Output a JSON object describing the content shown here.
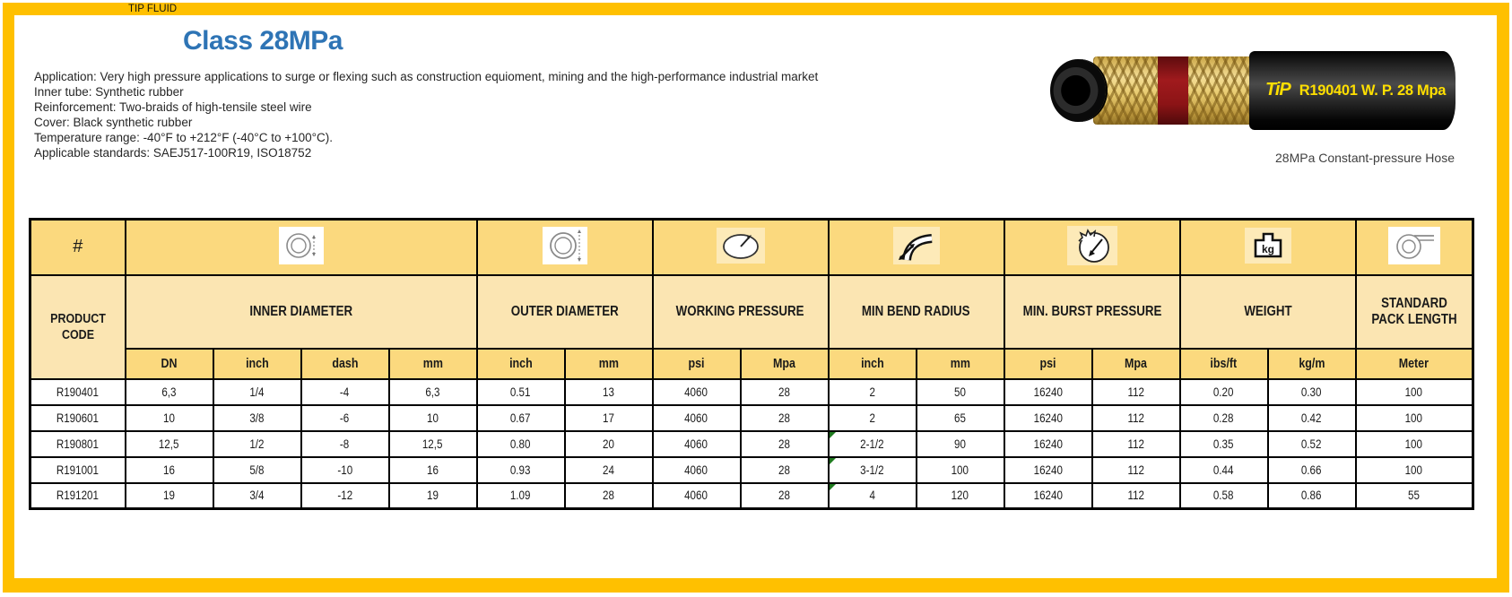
{
  "brand": {
    "top_label": "TIP FLUID"
  },
  "header": {
    "title": "Class 28MPa"
  },
  "description": {
    "lines": [
      "Application: Very high pressure applications to surge or flexing such as construction equioment, mining and the high-performance industrial market",
      "Inner tube: Synthetic rubber",
      "Reinforcement: Two-braids of high-tensile steel wire",
      "Cover: Black synthetic rubber",
      "Temperature range: -40°F to +212°F (-40°C to +100°C).",
      "Applicable standards: SAEJ517-100R19, ISO18752"
    ]
  },
  "hose": {
    "print_logo": "TiP",
    "print_text": "R190401 W. P. 28 Mpa",
    "caption": "28MPa Constant-pressure Hose"
  },
  "table": {
    "corner_symbol": "#",
    "product_code_label": "PRODUCT CODE",
    "groups": [
      {
        "label": "INNER DIAMETER",
        "icon": "inner-diameter-icon",
        "span": 4
      },
      {
        "label": "OUTER DIAMETER",
        "icon": "outer-diameter-icon",
        "span": 2
      },
      {
        "label": "WORKING PRESSURE",
        "icon": "working-pressure-icon",
        "span": 2
      },
      {
        "label": "MIN BEND RADIUS",
        "icon": "min-bend-radius-icon",
        "span": 2
      },
      {
        "label": "MIN. BURST PRESSURE",
        "icon": "min-burst-pressure-icon",
        "span": 2
      },
      {
        "label": "WEIGHT",
        "icon": "weight-icon",
        "span": 2
      },
      {
        "label": "STANDARD PACK LENGTH",
        "icon": "pack-length-icon",
        "span": 1
      }
    ],
    "units": [
      "DN",
      "inch",
      "dash",
      "mm",
      "inch",
      "mm",
      "psi",
      "Mpa",
      "inch",
      "mm",
      "psi",
      "Mpa",
      "ibs/ft",
      "kg/m",
      "Meter"
    ],
    "rows": [
      {
        "code": "R190401",
        "values": [
          "6,3",
          "1/4",
          "-4",
          "6,3",
          "0.51",
          "13",
          "4060",
          "28",
          "2",
          "50",
          "16240",
          "112",
          "0.20",
          "0.30",
          "100"
        ]
      },
      {
        "code": "R190601",
        "values": [
          "10",
          "3/8",
          "-6",
          "10",
          "0.67",
          "17",
          "4060",
          "28",
          "2",
          "65",
          "16240",
          "112",
          "0.28",
          "0.42",
          "100"
        ]
      },
      {
        "code": "R190801",
        "values": [
          "12,5",
          "1/2",
          "-8",
          "12,5",
          "0.80",
          "20",
          "4060",
          "28",
          "2-1/2",
          "90",
          "16240",
          "112",
          "0.35",
          "0.52",
          "100"
        ]
      },
      {
        "code": "R191001",
        "values": [
          "16",
          "5/8",
          "-10",
          "16",
          "0.93",
          "24",
          "4060",
          "28",
          "3-1/2",
          "100",
          "16240",
          "112",
          "0.44",
          "0.66",
          "100"
        ]
      },
      {
        "code": "R191201",
        "values": [
          "19",
          "3/4",
          "-12",
          "19",
          "1.09",
          "28",
          "4060",
          "28",
          "4",
          "120",
          "16240",
          "112",
          "0.58",
          "0.86",
          "55"
        ]
      }
    ],
    "flag_cells": [
      [
        2,
        8
      ],
      [
        3,
        8
      ],
      [
        4,
        8
      ]
    ]
  },
  "colors": {
    "frame_yellow": "#FFC000",
    "title_blue": "#2E74B5",
    "header_fill": "#FBD97E",
    "group_fill": "#FBE5B2",
    "hose_print_yellow": "#FFDF00",
    "flag_green": "#1F7A1F"
  }
}
